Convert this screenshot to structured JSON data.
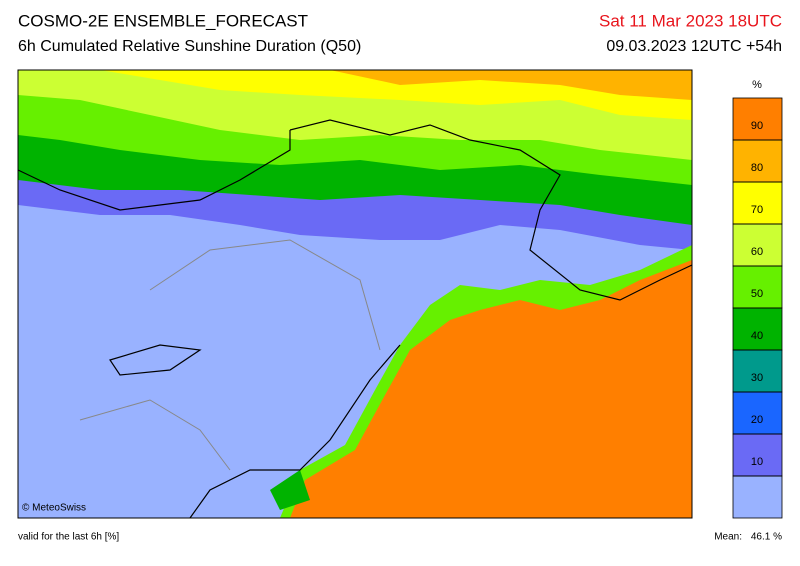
{
  "header": {
    "title": "COSMO-2E ENSEMBLE_FORECAST",
    "subtitle": "6h Cumulated Relative Sunshine Duration (Q50)",
    "valid_time": "Sat 11 Mar 2023 18UTC",
    "run_time": "09.03.2023 12UTC +54h"
  },
  "legend": {
    "unit": "%",
    "ticks": [
      10,
      20,
      30,
      40,
      50,
      60,
      70,
      80,
      90
    ],
    "colors": [
      "#99b2ff",
      "#6a6af5",
      "#1a66ff",
      "#009a8c",
      "#00b300",
      "#66f000",
      "#ccff33",
      "#ffff00",
      "#ffb300",
      "#ff7f00"
    ]
  },
  "map": {
    "copyright": "© MeteoSwiss"
  },
  "footer": {
    "note": "valid for the last 6h [%]",
    "mean_label": "Mean:",
    "mean_value": "46.1 %"
  }
}
